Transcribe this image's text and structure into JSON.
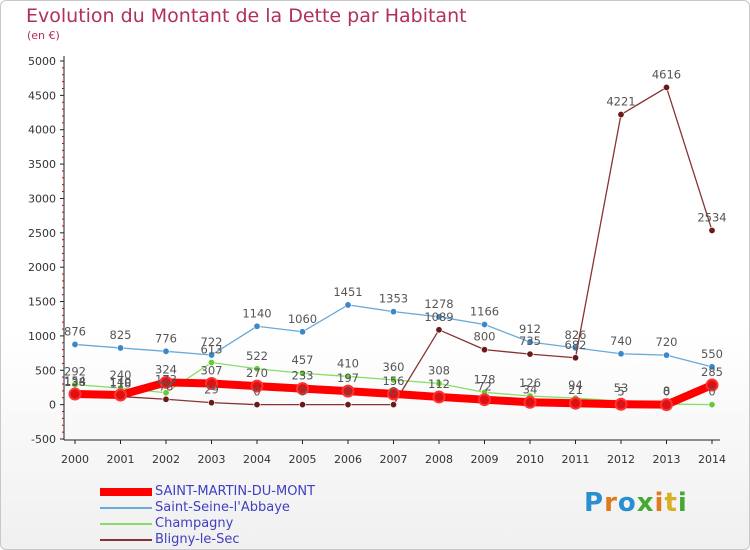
{
  "title": "Evolution du Montant de la Dette par Habitant",
  "subtitle": "(en €)",
  "logo": {
    "text": "Proxiti",
    "colors": [
      "#2a8fd0",
      "#e07a1c",
      "#2a8fd0",
      "#44aa33",
      "#e07a1c",
      "#d8b020",
      "#44aa33"
    ]
  },
  "chart_data": {
    "type": "line",
    "x": [
      "2000",
      "2001",
      "2002",
      "2003",
      "2004",
      "2005",
      "2006",
      "2007",
      "2008",
      "2009",
      "2010",
      "2011",
      "2012",
      "2013",
      "2014"
    ],
    "ylim": [
      -500,
      5000
    ],
    "yticks": [
      "-500",
      "0",
      "500",
      "1000",
      "1500",
      "2000",
      "2500",
      "3000",
      "3500",
      "4000",
      "4500",
      "5000"
    ],
    "grid": false,
    "legend_position": "bottom-left",
    "series": [
      {
        "name": "SAINT-MARTIN-DU-MONT",
        "color": "#ff0000",
        "marker": "#dd1111",
        "width": 8,
        "values": [
          154,
          140,
          324,
          307,
          270,
          233,
          197,
          156,
          112,
          72,
          34,
          21,
          5,
          0,
          285
        ],
        "labels": [
          "154",
          "140",
          "324",
          "307",
          "270",
          "233",
          "197",
          "156",
          "112",
          "72",
          "34",
          "21",
          "5",
          "0",
          "285"
        ]
      },
      {
        "name": "Saint-Seine-l'Abbaye",
        "color": "#6aaad8",
        "marker": "#3a88cc",
        "width": 1.3,
        "values": [
          876,
          825,
          776,
          722,
          1140,
          1060,
          1451,
          1353,
          1278,
          1166,
          912,
          826,
          740,
          720,
          550
        ],
        "labels": [
          "876",
          "825",
          "776",
          "722",
          "1140",
          "1060",
          "1451",
          "1353",
          "1278",
          "1166",
          "912",
          "826",
          "740",
          "720",
          "550"
        ]
      },
      {
        "name": "Champagny",
        "color": "#88dd66",
        "marker": "#66cc33",
        "width": 1.3,
        "values": [
          292,
          240,
          173,
          613,
          522,
          457,
          410,
          360,
          308,
          178,
          126,
          94,
          53,
          8,
          0
        ],
        "labels": [
          "292",
          "240",
          "173",
          "613",
          "522",
          "457",
          "410",
          "360",
          "308",
          "178",
          "126",
          "94",
          "53",
          "8",
          "0"
        ]
      },
      {
        "name": "Bligny-le-Sec",
        "color": "#883333",
        "marker": "#6a1a1a",
        "width": 1.3,
        "values": [
          138,
          118,
          78,
          29,
          0,
          0,
          0,
          0,
          1089,
          800,
          735,
          682,
          4221,
          4616,
          2534
        ],
        "labels": [
          "138",
          "118",
          "78",
          "29",
          "0",
          "0",
          "0",
          "0",
          "1089",
          "800",
          "735",
          "682",
          "4221",
          "4616",
          "2534"
        ]
      }
    ]
  }
}
